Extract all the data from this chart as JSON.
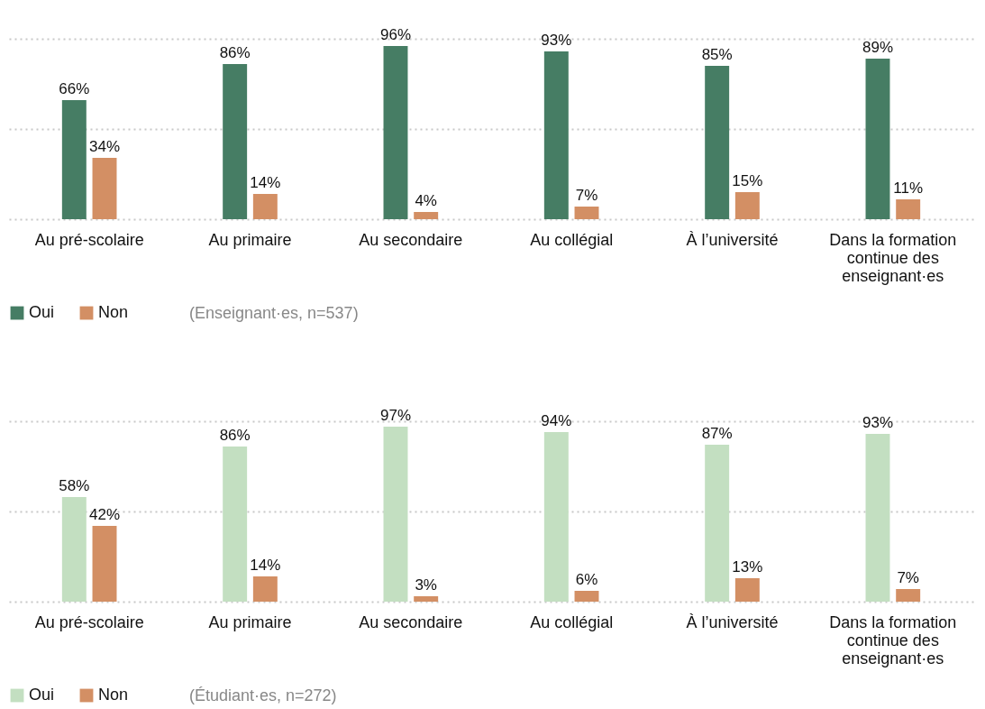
{
  "chart_data": [
    {
      "type": "bar",
      "categories": [
        "Au pré-scolaire",
        "Au primaire",
        "Au secondaire",
        "Au collégial",
        "À l’université",
        "Dans la formation continue des enseignant·es"
      ],
      "ylim": [
        0,
        100
      ],
      "yticks": [
        {
          "value": 0,
          "label": null
        },
        {
          "value": 50,
          "label": null
        },
        {
          "value": 100,
          "label": null
        }
      ],
      "tick_labels": "x",
      "grid": "y",
      "legend": "bottom left",
      "annotations": [
        "(Enseignant·es, n=537)"
      ],
      "series": [
        {
          "name": "Oui",
          "color": "#467d64",
          "values": [
            66,
            86,
            96,
            93,
            85,
            89
          ],
          "value_labels": [
            "66%",
            "86%",
            "96%",
            "93%",
            "85%",
            "89%"
          ]
        },
        {
          "name": "Non",
          "color": "#d38f64",
          "values": [
            34,
            14,
            4,
            7,
            15,
            11
          ],
          "value_labels": [
            "34%",
            "14%",
            "4%",
            "7%",
            "15%",
            "11%"
          ]
        }
      ]
    },
    {
      "type": "bar",
      "categories": [
        "Au pré-scolaire",
        "Au primaire",
        "Au secondaire",
        "Au collégial",
        "À l’université",
        "Dans la formation continue des enseignant·es"
      ],
      "ylim": [
        0,
        100
      ],
      "yticks": [
        {
          "value": 0,
          "label": null
        },
        {
          "value": 50,
          "label": null
        },
        {
          "value": 100,
          "label": null
        }
      ],
      "tick_labels": "x",
      "grid": "y",
      "legend": "bottom left",
      "annotations": [
        "(Étudiant·es, n=272)"
      ],
      "series": [
        {
          "name": "Oui",
          "color": "#c3dfc1",
          "values": [
            58,
            86,
            97,
            94,
            87,
            93
          ],
          "value_labels": [
            "58%",
            "86%",
            "97%",
            "94%",
            "87%",
            "93%"
          ]
        },
        {
          "name": "Non",
          "color": "#d38f64",
          "values": [
            42,
            14,
            3,
            6,
            13,
            7
          ],
          "value_labels": [
            "42%",
            "14%",
            "3%",
            "6%",
            "13%",
            "7%"
          ]
        }
      ]
    }
  ]
}
